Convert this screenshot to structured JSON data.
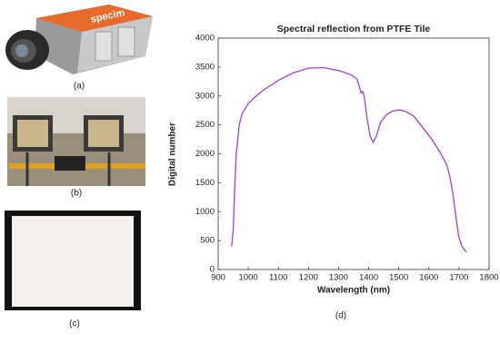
{
  "photo_text": "specim",
  "captions": [
    "(a)",
    "(b)",
    "(c)",
    "(d)"
  ],
  "chart_data": {
    "type": "line",
    "title": "Spectral reflection from PTFE Tile",
    "x_label": "Wavelength (nm)",
    "y_label": "Digital number",
    "x": [
      945,
      950,
      955,
      960,
      970,
      980,
      1000,
      1020,
      1050,
      1100,
      1150,
      1200,
      1250,
      1300,
      1340,
      1360,
      1370,
      1375,
      1380,
      1385,
      1395,
      1405,
      1415,
      1425,
      1440,
      1460,
      1480,
      1500,
      1520,
      1550,
      1580,
      1610,
      1640,
      1660,
      1670,
      1680,
      1690,
      1700,
      1710,
      1720,
      1725
    ],
    "values": [
      400,
      700,
      1400,
      2000,
      2500,
      2700,
      2870,
      2970,
      3100,
      3270,
      3400,
      3480,
      3490,
      3440,
      3370,
      3300,
      3150,
      3050,
      3080,
      3000,
      2600,
      2300,
      2200,
      2300,
      2550,
      2680,
      2740,
      2760,
      2740,
      2650,
      2450,
      2250,
      2000,
      1800,
      1600,
      1300,
      900,
      550,
      400,
      330,
      300
    ],
    "color": "#a03ee0",
    "xlim": [
      900,
      1800
    ],
    "xticks": [
      900,
      1000,
      1100,
      1200,
      1300,
      1400,
      1500,
      1600,
      1700,
      1800
    ],
    "ylim": [
      0,
      4000
    ],
    "yticks": [
      0,
      500,
      1000,
      1500,
      2000,
      2500,
      3000,
      3500,
      4000
    ]
  }
}
